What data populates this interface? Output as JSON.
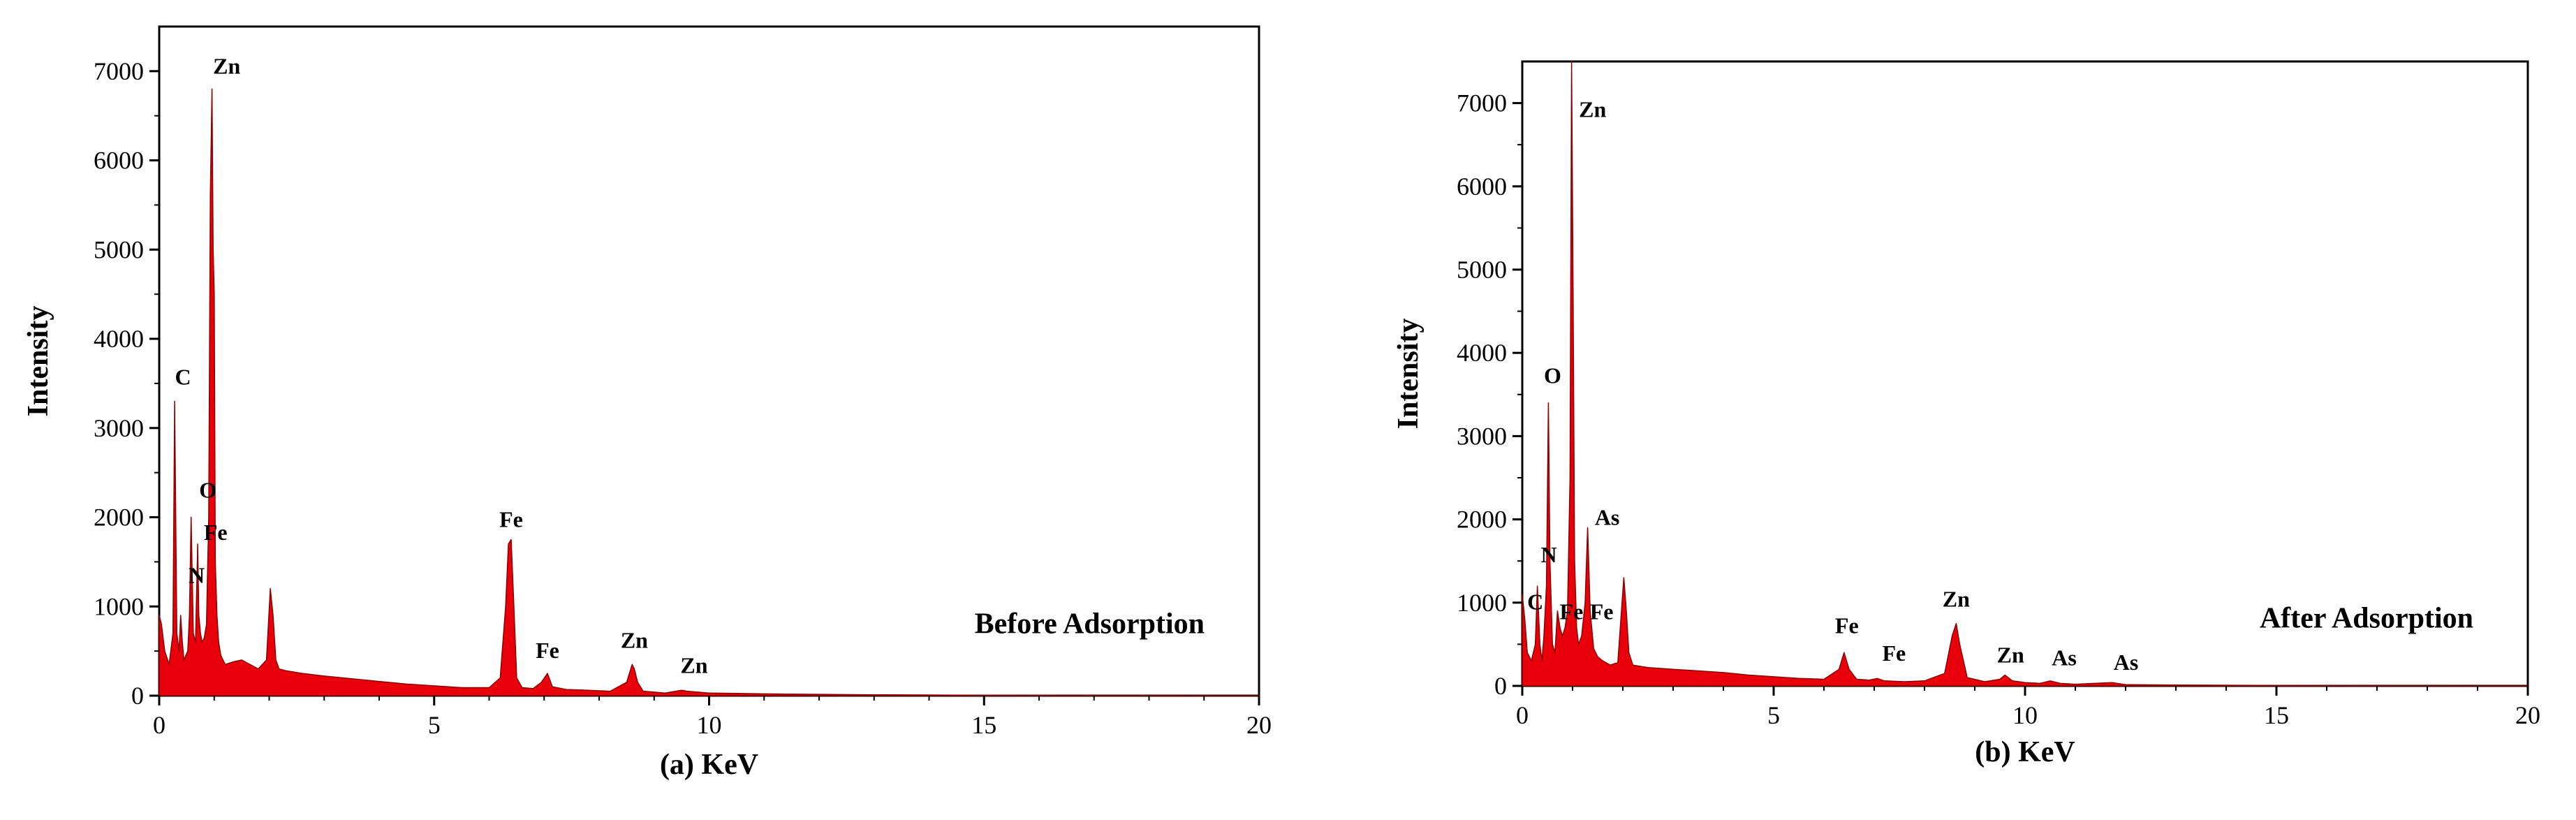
{
  "colors": {
    "spectrum_fill": "#e8000b",
    "spectrum_stroke": "#8b0000",
    "axis": "#000000"
  },
  "chart_data": [
    {
      "type": "area",
      "xlabel": "(a) KeV",
      "ylabel": "Intensity",
      "annotation": "Before Adsorption",
      "xlim": [
        0,
        20
      ],
      "ylim": [
        0,
        7500
      ],
      "xticks": [
        0,
        5,
        10,
        15,
        20
      ],
      "yticks": [
        0,
        1000,
        2000,
        3000,
        4000,
        5000,
        6000,
        7000
      ],
      "grid": false,
      "series": [
        {
          "x": [
            0,
            0.04,
            0.1,
            0.18,
            0.25,
            0.28,
            0.32,
            0.36,
            0.39,
            0.42,
            0.45,
            0.52,
            0.55,
            0.58,
            0.62,
            0.66,
            0.7,
            0.72,
            0.75,
            0.78,
            0.82,
            0.86,
            0.9,
            0.93,
            0.96,
            0.98,
            1.0,
            1.02,
            1.05,
            1.08,
            1.12,
            1.2,
            1.35,
            1.5,
            1.65,
            1.8,
            1.95,
            2.02,
            2.07,
            2.12,
            2.18,
            2.3,
            2.6,
            3.0,
            3.5,
            4.0,
            4.5,
            5.0,
            5.5,
            6.0,
            6.2,
            6.3,
            6.35,
            6.4,
            6.45,
            6.5,
            6.6,
            6.8,
            6.95,
            7.06,
            7.15,
            7.4,
            7.8,
            8.2,
            8.5,
            8.6,
            8.64,
            8.7,
            8.8,
            9.0,
            9.2,
            9.5,
            9.6,
            10.0,
            10.5,
            11.0,
            12.0,
            13.0,
            15.0,
            17.0,
            20.0
          ],
          "y": [
            900,
            800,
            500,
            350,
            700,
            3300,
            700,
            500,
            900,
            600,
            400,
            500,
            900,
            2000,
            700,
            600,
            1700,
            900,
            700,
            600,
            650,
            800,
            2000,
            5600,
            6800,
            5000,
            4500,
            1500,
            900,
            600,
            450,
            350,
            380,
            400,
            350,
            300,
            400,
            1200,
            900,
            400,
            300,
            280,
            250,
            220,
            190,
            160,
            130,
            110,
            90,
            90,
            200,
            1000,
            1700,
            1750,
            1000,
            200,
            90,
            80,
            150,
            250,
            100,
            70,
            60,
            50,
            150,
            350,
            300,
            150,
            50,
            40,
            30,
            60,
            50,
            30,
            25,
            20,
            15,
            10,
            5,
            2,
            0
          ]
        }
      ],
      "peak_labels": [
        {
          "text": "C",
          "x": 0.28,
          "y": 3300
        },
        {
          "text": "N",
          "x": 0.4,
          "y": 1200
        },
        {
          "text": "O",
          "x": 0.58,
          "y": 2000
        },
        {
          "text": "Fe",
          "x": 0.72,
          "y": 1700
        },
        {
          "text": "Zn",
          "x": 1.0,
          "y": 6800
        },
        {
          "text": "Fe",
          "x": 6.4,
          "y": 1750
        },
        {
          "text": "Fe",
          "x": 7.06,
          "y": 250
        },
        {
          "text": "Zn",
          "x": 8.64,
          "y": 350
        },
        {
          "text": "Zn",
          "x": 9.6,
          "y": 50
        }
      ]
    },
    {
      "type": "area",
      "xlabel": "(b) KeV",
      "ylabel": "Intensity",
      "annotation": "After Adsorption",
      "xlim": [
        0,
        20
      ],
      "ylim": [
        0,
        7500
      ],
      "xticks": [
        0,
        5,
        10,
        15,
        20
      ],
      "yticks": [
        0,
        1000,
        2000,
        3000,
        4000,
        5000,
        6000,
        7000
      ],
      "grid": false,
      "series": [
        {
          "x": [
            0,
            0.05,
            0.1,
            0.18,
            0.26,
            0.3,
            0.35,
            0.39,
            0.43,
            0.48,
            0.52,
            0.55,
            0.6,
            0.65,
            0.7,
            0.75,
            0.8,
            0.85,
            0.9,
            0.95,
            0.98,
            1.01,
            1.04,
            1.08,
            1.12,
            1.18,
            1.25,
            1.3,
            1.35,
            1.42,
            1.5,
            1.6,
            1.75,
            1.9,
            2.02,
            2.07,
            2.12,
            2.2,
            2.5,
            3.0,
            3.5,
            4.0,
            4.5,
            5.0,
            5.5,
            6.0,
            6.3,
            6.4,
            6.5,
            6.65,
            6.9,
            7.06,
            7.2,
            7.6,
            8.0,
            8.4,
            8.55,
            8.63,
            8.7,
            8.85,
            9.2,
            9.5,
            9.6,
            9.75,
            10.0,
            10.3,
            10.5,
            10.7,
            11.0,
            11.73,
            12.0,
            13.0,
            15.0,
            17.0,
            20.0
          ],
          "y": [
            1100,
            800,
            400,
            300,
            500,
            1200,
            500,
            300,
            600,
            1200,
            3400,
            1500,
            500,
            400,
            900,
            700,
            600,
            700,
            900,
            2500,
            7500,
            4800,
            1500,
            700,
            500,
            600,
            1000,
            1900,
            900,
            450,
            350,
            300,
            250,
            280,
            1300,
            900,
            400,
            250,
            220,
            200,
            180,
            160,
            130,
            110,
            90,
            80,
            200,
            400,
            200,
            80,
            70,
            90,
            60,
            50,
            60,
            150,
            600,
            750,
            500,
            100,
            50,
            80,
            130,
            60,
            40,
            30,
            60,
            30,
            20,
            40,
            15,
            10,
            5,
            2,
            0
          ]
        }
      ],
      "peak_labels": [
        {
          "text": "C",
          "x": 0.26,
          "y": 500
        },
        {
          "text": "N",
          "x": 0.39,
          "y": 1200
        },
        {
          "text": "Fe",
          "x": 0.7,
          "y": 700
        },
        {
          "text": "Fe",
          "x": 0.8,
          "y": 700
        },
        {
          "text": "O",
          "x": 0.52,
          "y": 3400
        },
        {
          "text": "Zn",
          "x": 1.01,
          "y": 7000
        },
        {
          "text": "As",
          "x": 1.3,
          "y": 1900
        },
        {
          "text": "Fe",
          "x": 6.4,
          "y": 400
        },
        {
          "text": "Fe",
          "x": 7.06,
          "y": 200
        },
        {
          "text": "Zn",
          "x": 8.63,
          "y": 750
        },
        {
          "text": "Zn",
          "x": 9.6,
          "y": 130
        },
        {
          "text": "As",
          "x": 10.5,
          "y": 80
        },
        {
          "text": "As",
          "x": 11.73,
          "y": 60
        }
      ]
    }
  ]
}
